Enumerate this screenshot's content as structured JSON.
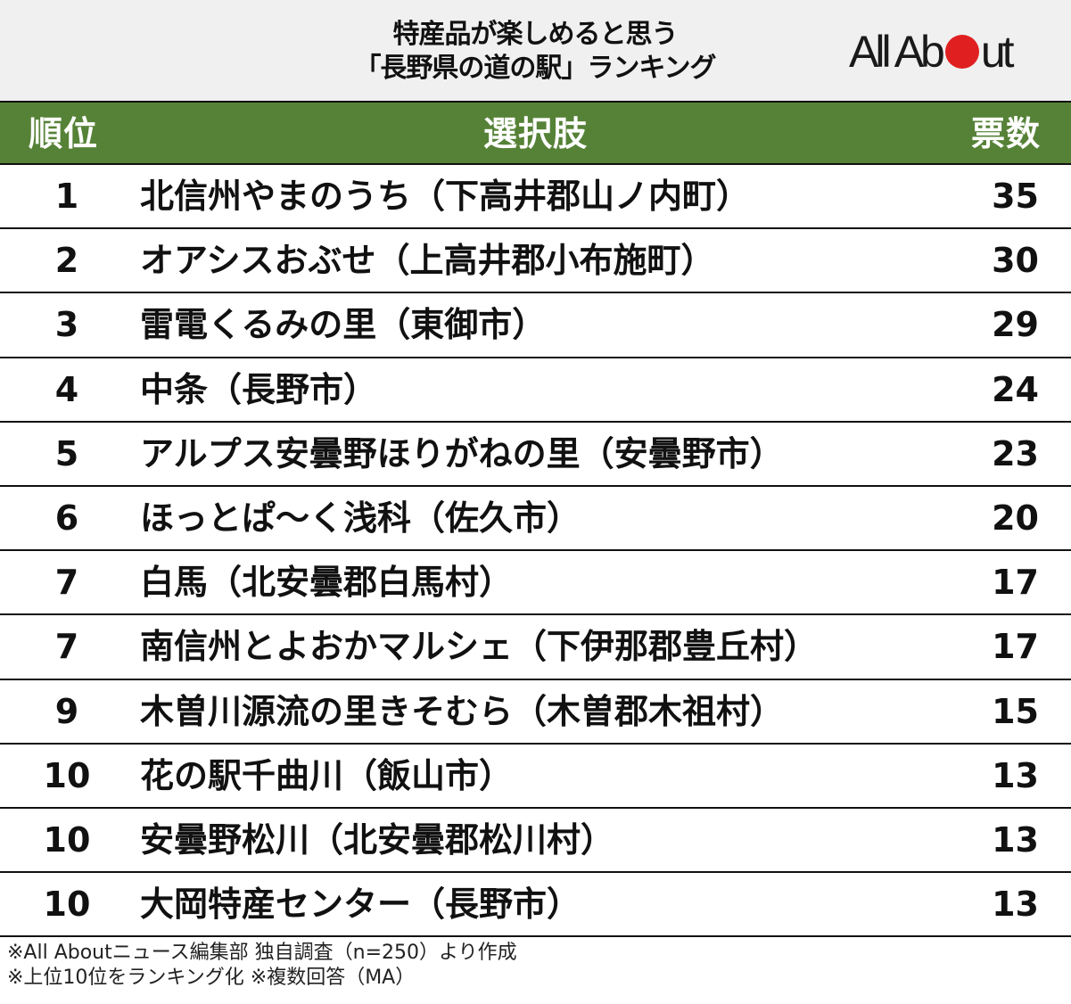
{
  "title": {
    "line1": "特産品が楽しめると思う",
    "line2": "「長野県の道の駅」ランキング"
  },
  "logo": {
    "text_before": "All Ab",
    "text_after": "ut",
    "dot_color": "#e02020"
  },
  "header": {
    "rank": "順位",
    "choice": "選択肢",
    "votes": "票数",
    "bg_color": "#568237"
  },
  "rows": [
    {
      "rank": "1",
      "name": "北信州やまのうち（下高井郡山ノ内町）",
      "votes": "35"
    },
    {
      "rank": "2",
      "name": "オアシスおぶせ（上高井郡小布施町）",
      "votes": "30"
    },
    {
      "rank": "3",
      "name": "雷電くるみの里（東御市）",
      "votes": "29"
    },
    {
      "rank": "4",
      "name": "中条（長野市）",
      "votes": "24"
    },
    {
      "rank": "5",
      "name": "アルプス安曇野ほりがねの里（安曇野市）",
      "votes": "23"
    },
    {
      "rank": "6",
      "name": "ほっとぱ～く浅科（佐久市）",
      "votes": "20"
    },
    {
      "rank": "7",
      "name": "白馬（北安曇郡白馬村）",
      "votes": "17"
    },
    {
      "rank": "7",
      "name": "南信州とよおかマルシェ（下伊那郡豊丘村）",
      "votes": "17"
    },
    {
      "rank": "9",
      "name": "木曽川源流の里きそむら（木曽郡木祖村）",
      "votes": "15"
    },
    {
      "rank": "10",
      "name": "花の駅千曲川（飯山市）",
      "votes": "13"
    },
    {
      "rank": "10",
      "name": "安曇野松川（北安曇郡松川村）",
      "votes": "13"
    },
    {
      "rank": "10",
      "name": "大岡特産センター（長野市）",
      "votes": "13"
    }
  ],
  "notes": {
    "line1": "※All Aboutニュース編集部 独自調査（n=250）より作成",
    "line2": "※上位10位をランキング化 ※複数回答（MA）"
  },
  "chart_data": {
    "type": "table",
    "title": "特産品が楽しめると思う「長野県の道の駅」ランキング",
    "columns": [
      "順位",
      "選択肢",
      "票数"
    ],
    "categories": [
      "北信州やまのうち（下高井郡山ノ内町）",
      "オアシスおぶせ（上高井郡小布施町）",
      "雷電くるみの里（東御市）",
      "中条（長野市）",
      "アルプス安曇野ほりがねの里（安曇野市）",
      "ほっとぱ～く浅科（佐久市）",
      "白馬（北安曇郡白馬村）",
      "南信州とよおかマルシェ（下伊那郡豊丘村）",
      "木曽川源流の里きそむら（木曽郡木祖村）",
      "花の駅千曲川（飯山市）",
      "安曇野松川（北安曇郡松川村）",
      "大岡特産センター（長野市）"
    ],
    "ranks": [
      1,
      2,
      3,
      4,
      5,
      6,
      7,
      7,
      9,
      10,
      10,
      10
    ],
    "values": [
      35,
      30,
      29,
      24,
      23,
      20,
      17,
      17,
      15,
      13,
      13,
      13
    ],
    "annotations": [
      "※All Aboutニュース編集部 独自調査（n=250）より作成",
      "※上位10位をランキング化 ※複数回答（MA）"
    ]
  }
}
